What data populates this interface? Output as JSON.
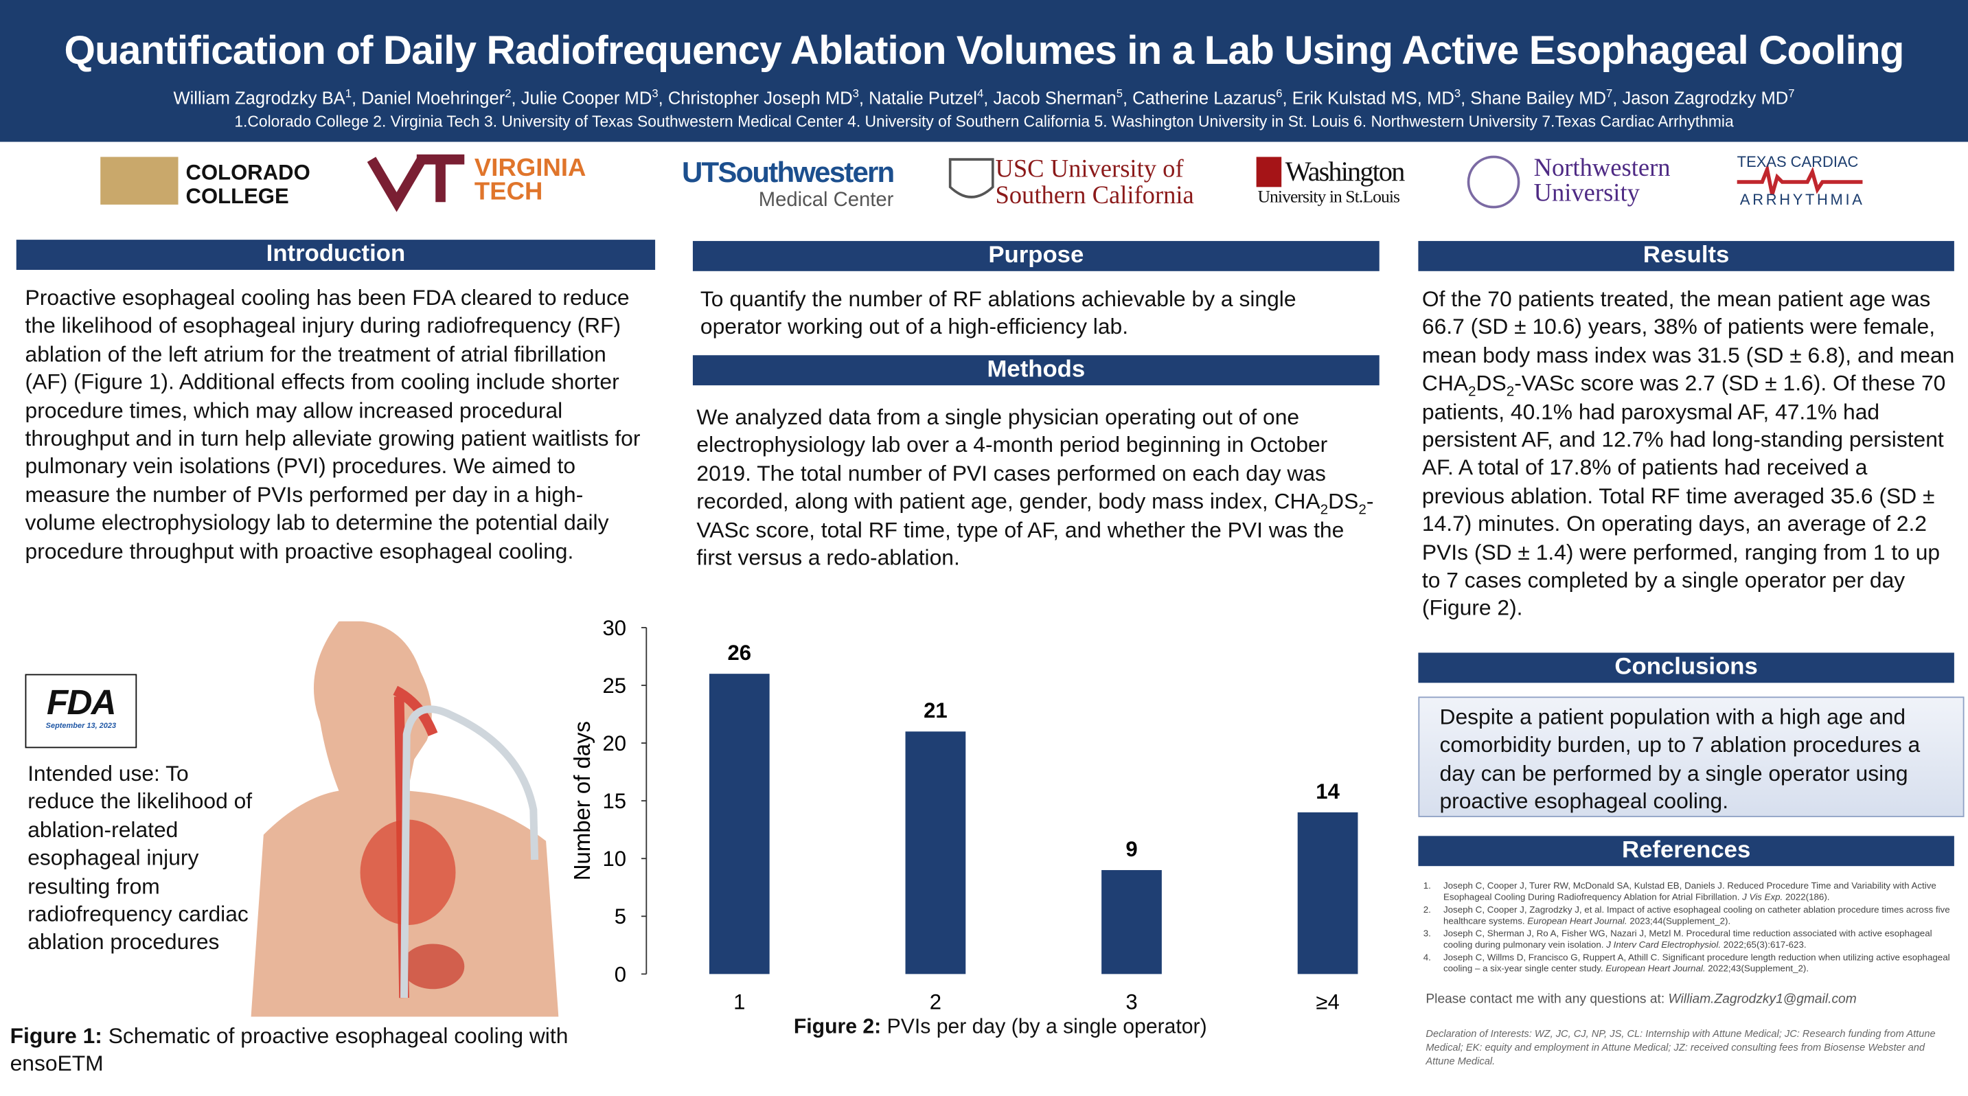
{
  "header": {
    "title": "Quantification of Daily Radiofrequency Ablation Volumes in a Lab Using Active Esophageal Cooling",
    "authors": [
      "William Zagrodzky BA",
      {
        "sup": "1"
      },
      ", Daniel Moehringer",
      {
        "sup": "2"
      },
      ", Julie Cooper MD",
      {
        "sup": "3"
      },
      ", Christopher Joseph MD",
      {
        "sup": "3"
      },
      ", Natalie Putzel",
      {
        "sup": "4"
      },
      ", Jacob Sherman",
      {
        "sup": "5"
      },
      ", Catherine Lazarus",
      {
        "sup": "6"
      },
      ", Erik Kulstad MS, MD",
      {
        "sup": "3"
      },
      ", Shane Bailey MD",
      {
        "sup": "7"
      },
      ", Jason Zagrodzky MD",
      {
        "sup": "7"
      }
    ],
    "affiliations": "1.Colorado College 2. Virginia Tech 3. University of Texas Southwestern Medical Center 4. University of Southern California 5. Washington University in St. Louis 6. Northwestern University 7.Texas Cardiac Arrhythmia"
  },
  "logos": {
    "colorado": [
      "COLORADO",
      "COLLEGE"
    ],
    "virginia": [
      "VIRGINIA",
      "TECH"
    ],
    "utsw": [
      "UTSouthwestern",
      "Medical Center"
    ],
    "usc": [
      "USC University of",
      "Southern California"
    ],
    "washu": [
      "Washington",
      "University in St.Louis"
    ],
    "northwestern": [
      "Northwestern",
      "University"
    ],
    "tca": [
      "TEXAS CARDIAC",
      "ARRHYTHMIA"
    ]
  },
  "introduction": {
    "heading": "Introduction",
    "text": "Proactive esophageal cooling has been FDA cleared to reduce the likelihood of esophageal injury during radiofrequency (RF) ablation of the left atrium for the treatment of atrial fibrillation (AF) (Figure 1). Additional effects from cooling include shorter procedure times, which may allow increased procedural throughput and in turn help alleviate growing patient waitlists for pulmonary vein isolations (PVI) procedures. We aimed to measure the number of PVIs performed per day in a high-volume electrophysiology lab to determine the potential daily procedure throughput with proactive esophageal cooling."
  },
  "figure1": {
    "badge": "FDA",
    "badge_date": "September 13, 2023",
    "intended_use": "Intended use: To reduce the likelihood of ablation-related esophageal injury resulting from radiofrequency cardiac ablation procedures",
    "caption_label": "Figure 1:",
    "caption": "Schematic of proactive esophageal cooling with ensoETM"
  },
  "purpose": {
    "heading": "Purpose",
    "text": "To quantify the number of RF ablations achievable by a single operator working out of a high-efficiency lab."
  },
  "methods": {
    "heading": "Methods",
    "text": [
      "We analyzed data from a single physician operating out of one electrophysiology lab over a 4-month period beginning in October 2019. The total number of PVI cases performed on each day was recorded, along with patient age, gender, body mass index, CHA",
      {
        "sub": "2"
      },
      "DS",
      {
        "sub": "2"
      },
      "-VASc score, total RF time, type of AF, and whether the PVI was the first versus a redo-ablation."
    ]
  },
  "results": {
    "heading": "Results",
    "text": [
      "Of the 70 patients treated, the mean patient age was 66.7 (SD ± 10.6) years, 38% of patients were female, mean body mass index was 31.5 (SD ± 6.8), and mean CHA",
      {
        "sub": "2"
      },
      "DS",
      {
        "sub": "2"
      },
      "-VASc score was 2.7 (SD ± 1.6). Of these 70 patients, 40.1% had paroxysmal AF, 47.1% had persistent AF, and 12.7% had long-standing persistent AF. A total of 17.8% of patients had received a previous ablation. Total RF time averaged 35.6 (SD ± 14.7) minutes. On operating days, an average of 2.2 PVIs (SD ± 1.4) were performed, ranging from 1 to up to 7 cases completed by a single operator per day (Figure 2)."
    ]
  },
  "conclusions": {
    "heading": "Conclusions",
    "text": "Despite a patient population with a high age and comorbidity burden, up to 7 ablation procedures a day can be performed by a single operator using proactive esophageal cooling."
  },
  "references": {
    "heading": "References",
    "items": [
      {
        "number": "1.",
        "text": [
          "Joseph C, Cooper J, Turer RW, McDonald SA, Kulstad EB, Daniels J. Reduced Procedure Time and Variability with Active Esophageal Cooling During Radiofrequency Ablation for Atrial Fibrillation. ",
          {
            "i": "J Vis Exp."
          },
          " 2022(186)."
        ]
      },
      {
        "number": "2.",
        "text": [
          "Joseph C, Cooper J, Zagrodzky J, et al. Impact of active esophageal cooling on catheter ablation procedure times across five healthcare systems. ",
          {
            "i": "European Heart Journal."
          },
          " 2023;44(Supplement_2)."
        ]
      },
      {
        "number": "3.",
        "text": [
          "Joseph C, Sherman J, Ro A, Fisher WG, Nazari J, Metzl M. Procedural time reduction associated with active esophageal cooling during pulmonary vein isolation. ",
          {
            "i": "J Interv Card Electrophysiol."
          },
          " 2022;65(3):617-623."
        ]
      },
      {
        "number": "4.",
        "text": [
          "Joseph C, Willms D, Francisco G, Ruppert A, Athill C. Significant procedure length reduction when utilizing active esophageal cooling – a six-year single center study. ",
          {
            "i": "European Heart Journal."
          },
          " 2022;43(Supplement_2)."
        ]
      }
    ]
  },
  "contact": {
    "text": "Please contact me with any questions at:",
    "email": "William.Zagrodzky1@gmail.com"
  },
  "declaration": "Declaration of Interests: WZ, JC, CJ, NP, JS, CL: Internship with Attune Medical; JC: Research funding from Attune Medical; EK: equity and employment in Attune Medical; JZ: received consulting fees from Biosense Webster and Attune Medical.",
  "chart_data": {
    "type": "bar",
    "y_label": "Number of days",
    "caption_label": "Figure 2:",
    "caption": "PVIs per day (by a single operator)",
    "categories": [
      "1",
      "2",
      "3",
      "≥4"
    ],
    "values": [
      26,
      21,
      9,
      14
    ],
    "color": "#1f3f73",
    "ylim": [
      0,
      30
    ],
    "yticks": [
      0,
      5,
      10,
      15,
      20,
      25,
      30
    ],
    "grid": false
  }
}
